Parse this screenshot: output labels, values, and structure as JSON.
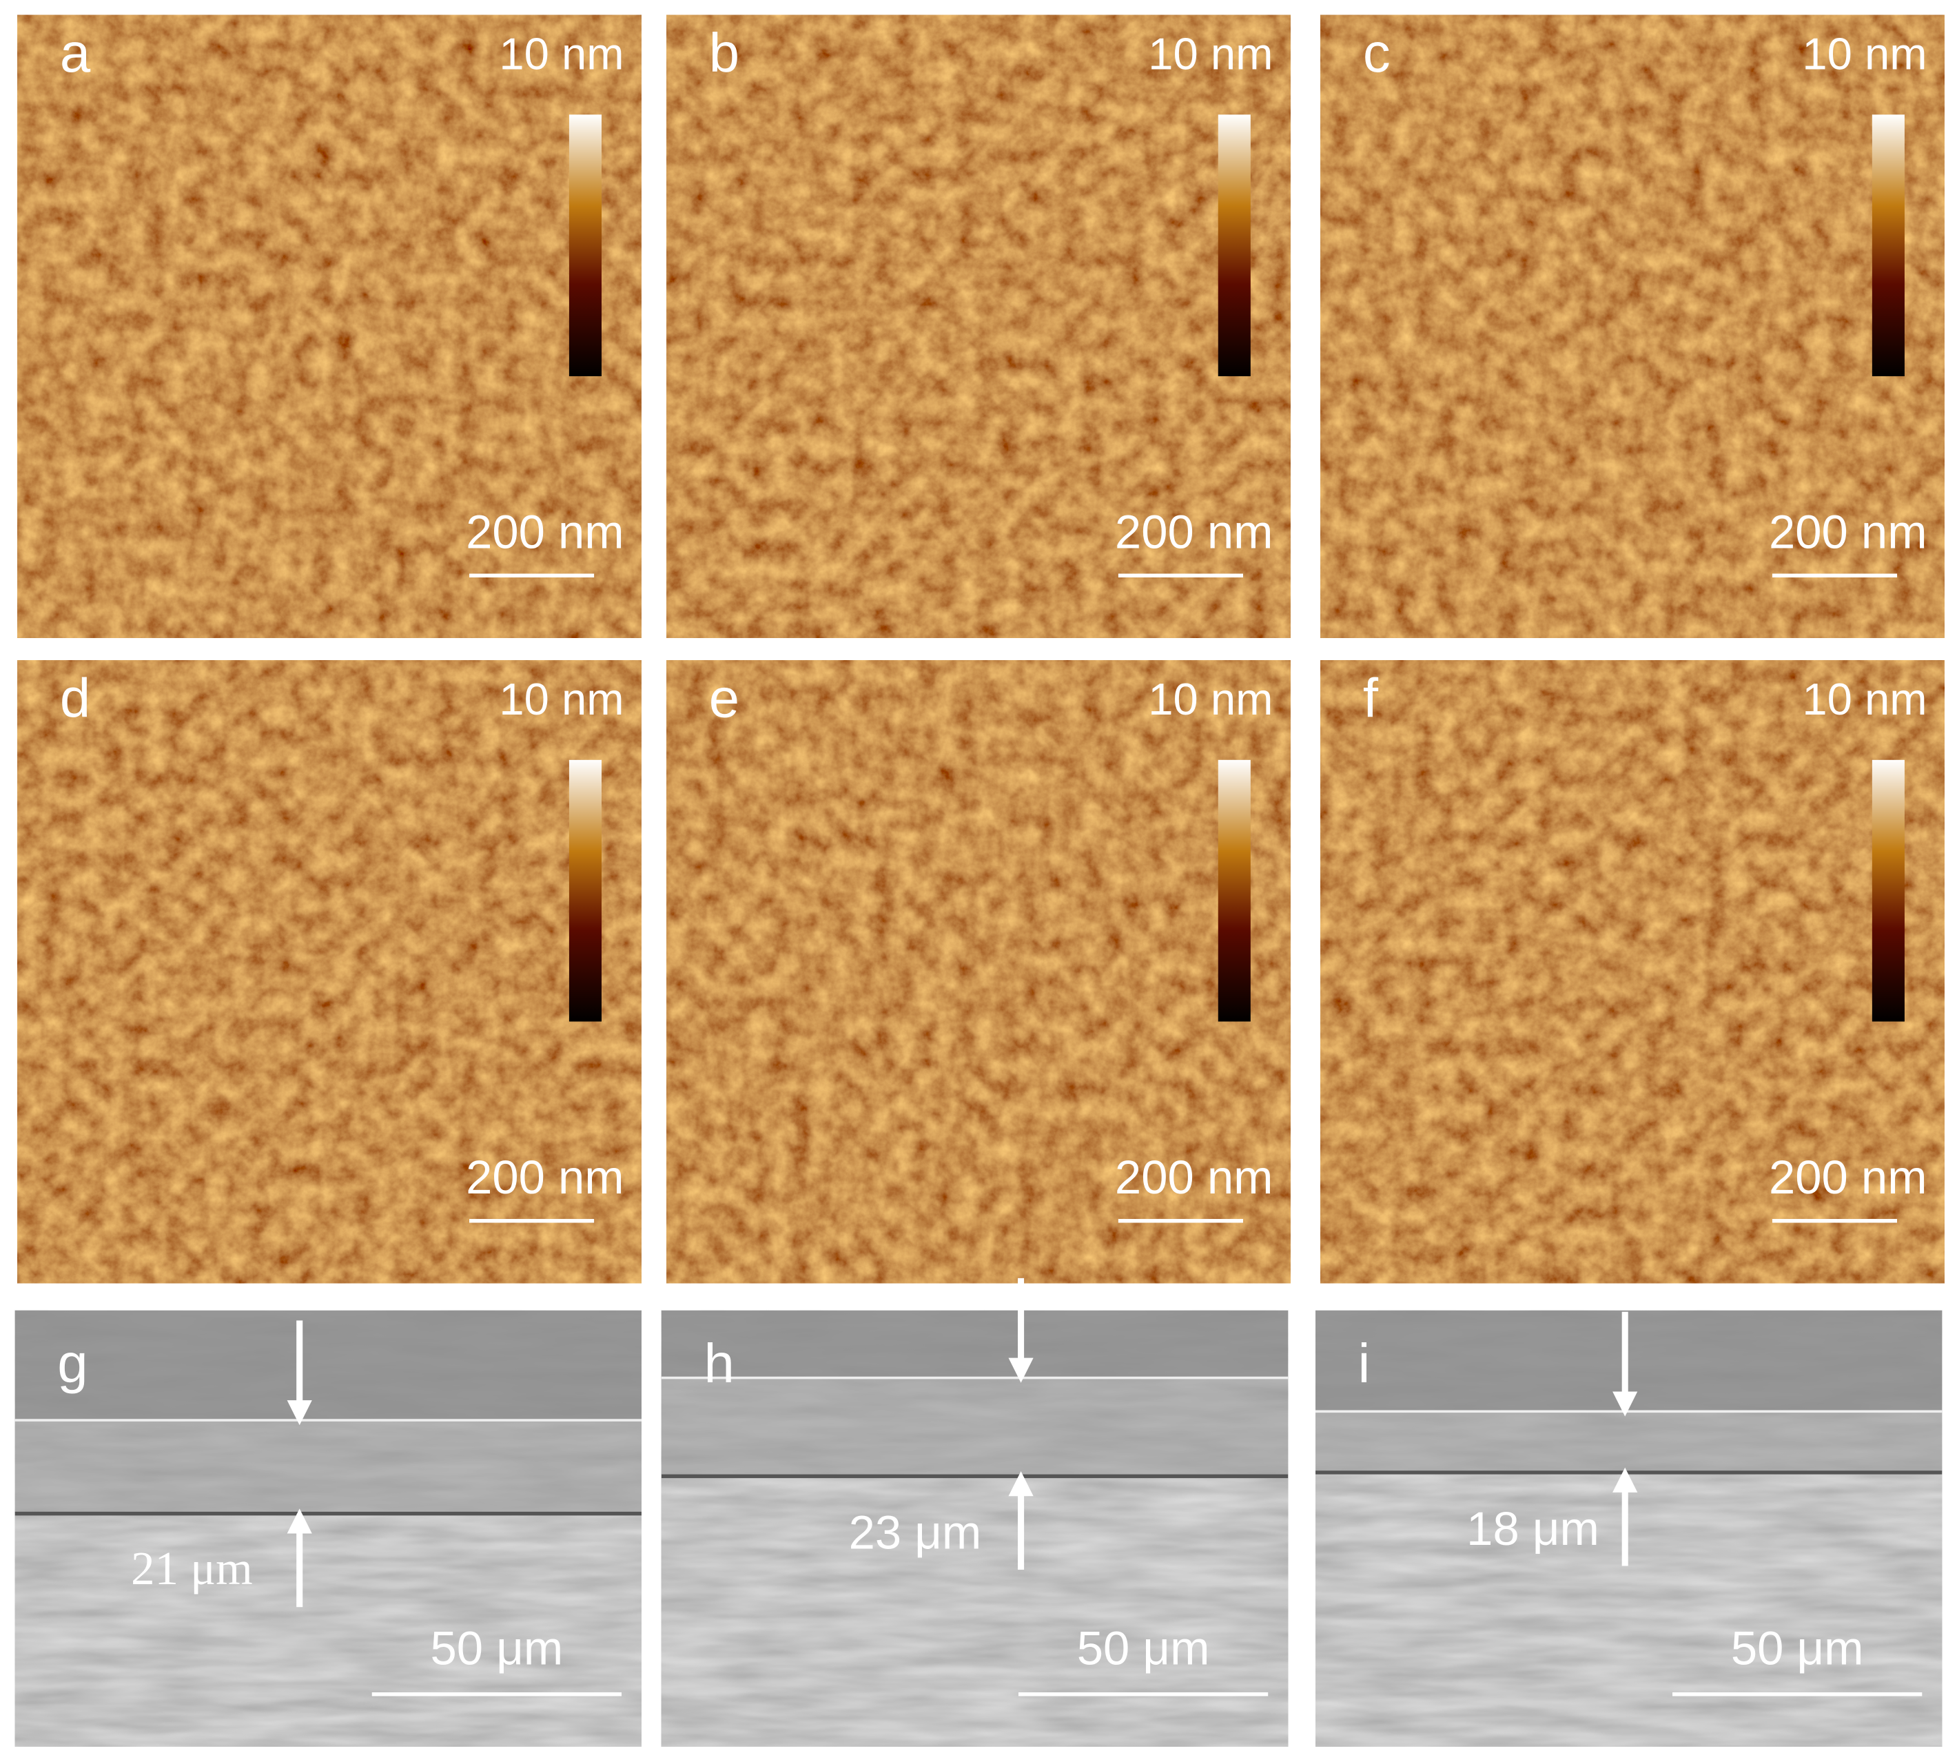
{
  "afm_panels": [
    {
      "label": "a",
      "height_scale": "10 nm",
      "scale_bar": "200 nm"
    },
    {
      "label": "b",
      "height_scale": "10 nm",
      "scale_bar": "200 nm"
    },
    {
      "label": "c",
      "height_scale": "10 nm",
      "scale_bar": "200 nm"
    },
    {
      "label": "d",
      "height_scale": "10 nm",
      "scale_bar": "200 nm"
    },
    {
      "label": "e",
      "height_scale": "10 nm",
      "scale_bar": "200 nm"
    },
    {
      "label": "f",
      "height_scale": "10 nm",
      "scale_bar": "200 nm"
    }
  ],
  "sem_panels": [
    {
      "label": "g",
      "thickness": "21 μm",
      "scale_bar": "50 μm"
    },
    {
      "label": "h",
      "thickness": "23 μm",
      "scale_bar": "50 μm"
    },
    {
      "label": "i",
      "thickness": "18 μm",
      "scale_bar": "50 μm"
    }
  ]
}
